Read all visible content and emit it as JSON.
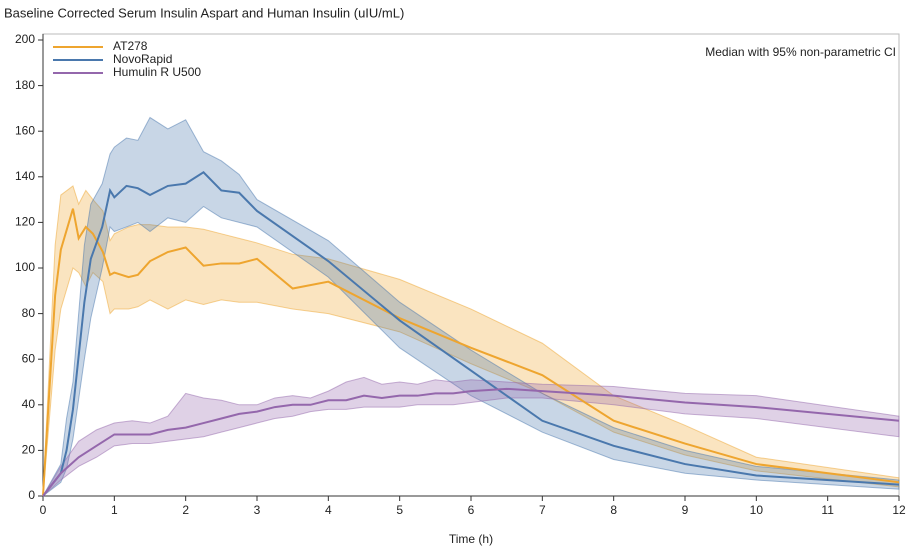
{
  "chart_data": {
    "type": "line",
    "title": "Baseline Corrected Serum Insulin Aspart and Human Insulin (uIU/mL)",
    "annotation": "Median with 95% non-parametric CI",
    "x_label": "Time (h)",
    "xlim": [
      0,
      12
    ],
    "xticks": [
      0,
      1,
      2,
      3,
      4,
      5,
      6,
      7,
      8,
      9,
      10,
      11,
      12
    ],
    "ylim": [
      0,
      200
    ],
    "yticks": [
      0,
      20,
      40,
      60,
      80,
      100,
      120,
      140,
      160,
      180,
      200
    ],
    "legend": "upper-left",
    "series": [
      {
        "name": "AT278",
        "color": "#eea52f",
        "x": [
          0,
          0.17,
          0.25,
          0.42,
          0.5,
          0.6,
          0.7,
          0.84,
          0.94,
          1,
          1.2,
          1.33,
          1.5,
          1.75,
          2,
          2.25,
          2.5,
          2.75,
          3,
          3.5,
          4,
          5,
          6,
          7,
          8,
          9,
          10,
          12
        ],
        "values": [
          0,
          88,
          108,
          126,
          113,
          118,
          115,
          107,
          97,
          98,
          96,
          97,
          103,
          107,
          109,
          101,
          102,
          102,
          104,
          91,
          94,
          78,
          65,
          53,
          33,
          23,
          14,
          6
        ],
        "upper": [
          0,
          110,
          132,
          136,
          128,
          134,
          130,
          125,
          112,
          115,
          118,
          119,
          119,
          118,
          118,
          117,
          115,
          113,
          111,
          106,
          104,
          95,
          82,
          67,
          44,
          31,
          17,
          8
        ],
        "lower": [
          0,
          64,
          82,
          100,
          98,
          92,
          98,
          94,
          80,
          82,
          82,
          83,
          86,
          82,
          86,
          84,
          86,
          85,
          85,
          82,
          80,
          72,
          58,
          45,
          28,
          18,
          11,
          4
        ]
      },
      {
        "name": "NovoRapid",
        "color": "#4a78ad",
        "x": [
          0,
          0.25,
          0.33,
          0.42,
          0.58,
          0.67,
          0.83,
          0.94,
          1,
          1.17,
          1.33,
          1.5,
          1.75,
          2,
          2.25,
          2.5,
          2.75,
          3,
          4,
          5,
          6,
          7,
          8,
          9,
          10,
          12
        ],
        "values": [
          0,
          10,
          20,
          38,
          85,
          104,
          118,
          134,
          131,
          136,
          135,
          132,
          136,
          137,
          142,
          134,
          133,
          125,
          103,
          77,
          55,
          33,
          22,
          14,
          9,
          5
        ],
        "upper": [
          0,
          14,
          34,
          50,
          110,
          128,
          137,
          150,
          153,
          157,
          156,
          166,
          161,
          165,
          151,
          147,
          141,
          130,
          112,
          85,
          64,
          45,
          30,
          20,
          13,
          7
        ],
        "lower": [
          0,
          6,
          12,
          25,
          60,
          78,
          100,
          118,
          116,
          118,
          120,
          116,
          122,
          120,
          127,
          122,
          120,
          118,
          96,
          65,
          44,
          28,
          16,
          10,
          7,
          3
        ]
      },
      {
        "name": "Humulin R U500",
        "color": "#9467ac",
        "x": [
          0,
          0.25,
          0.5,
          0.75,
          1,
          1.25,
          1.5,
          1.75,
          2,
          2.25,
          2.5,
          2.75,
          3,
          3.25,
          3.5,
          3.75,
          4,
          4.25,
          4.5,
          4.75,
          5,
          5.25,
          5.5,
          5.75,
          6,
          6.5,
          7,
          8,
          9,
          10,
          12
        ],
        "values": [
          0,
          10,
          17,
          22,
          27,
          27,
          27,
          29,
          30,
          32,
          34,
          36,
          37,
          39,
          40,
          40,
          42,
          42,
          44,
          43,
          44,
          44,
          45,
          45,
          46,
          47,
          46,
          44,
          41,
          39,
          33
        ],
        "upper": [
          0,
          13,
          24,
          29,
          32,
          33,
          32,
          35,
          45,
          43,
          42,
          40,
          40,
          43,
          44,
          43,
          46,
          50,
          52,
          49,
          50,
          49,
          51,
          50,
          51,
          50,
          49,
          48,
          45,
          44,
          35
        ],
        "lower": [
          0,
          7,
          13,
          17,
          22,
          23,
          23,
          24,
          25,
          26,
          28,
          30,
          32,
          34,
          35,
          37,
          38,
          38,
          39,
          39,
          39,
          40,
          40,
          40,
          41,
          43,
          43,
          40,
          36,
          34,
          26
        ]
      }
    ]
  }
}
